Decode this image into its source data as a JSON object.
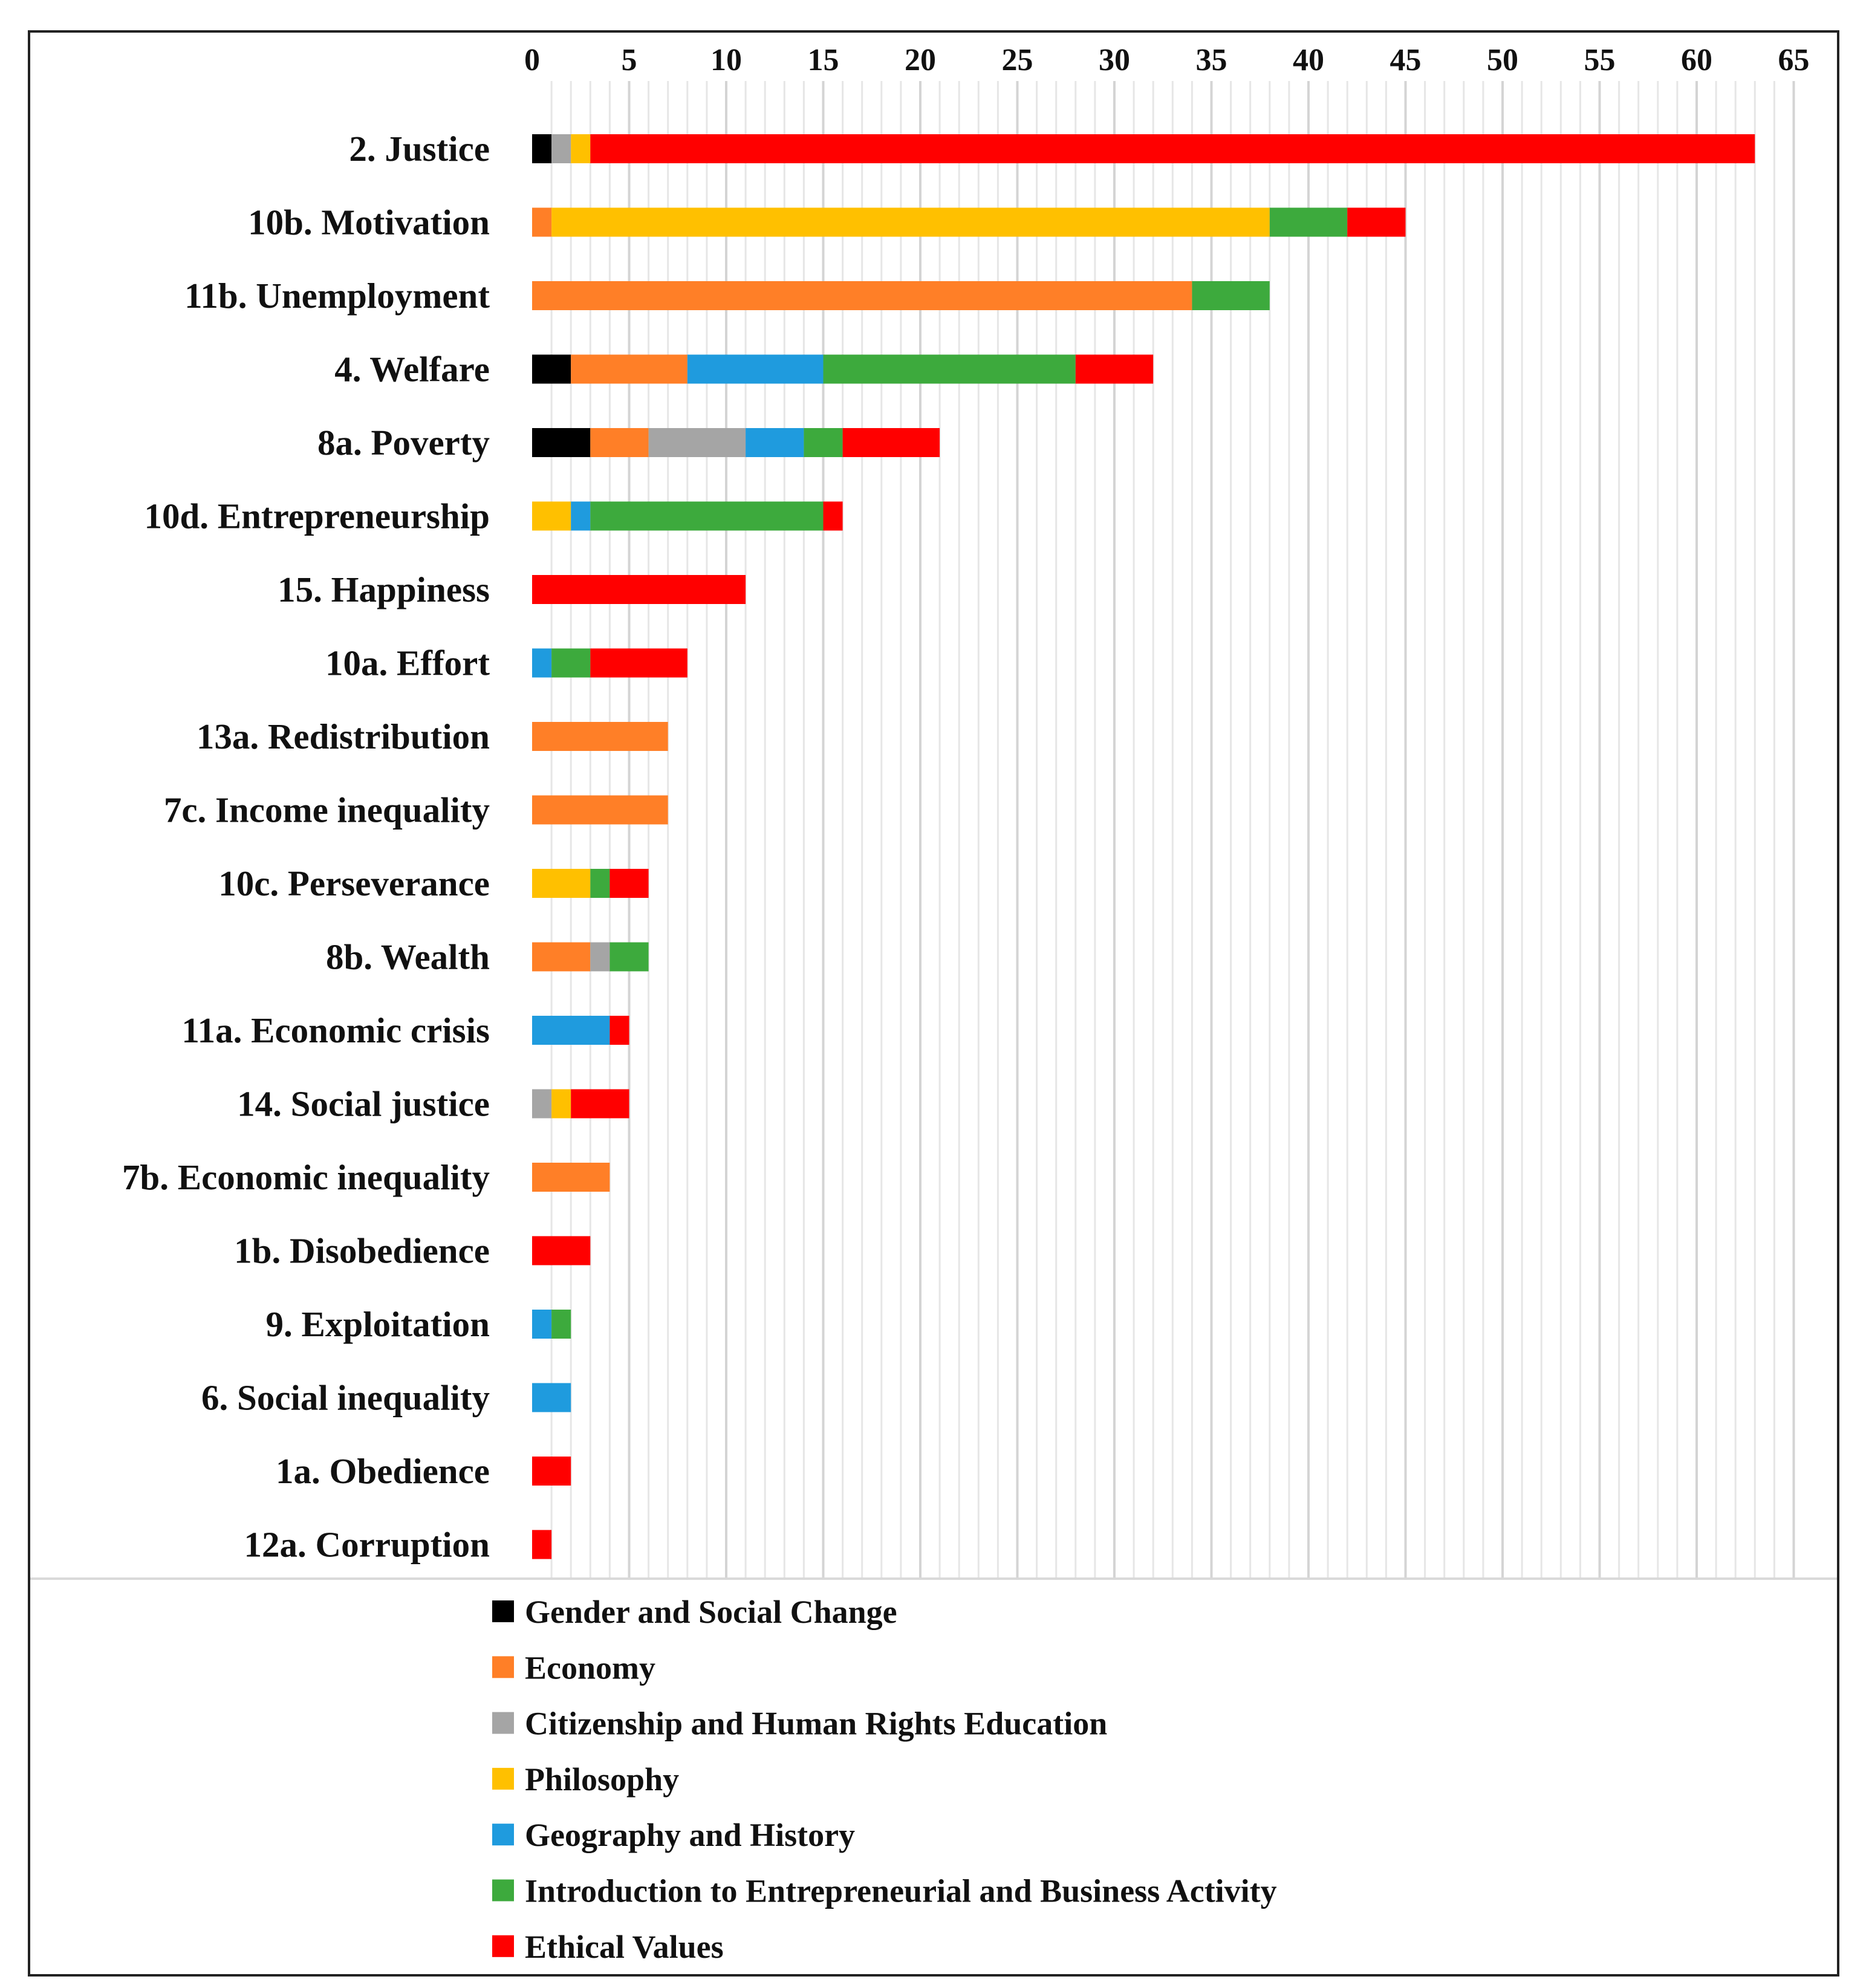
{
  "chart_data": {
    "type": "bar",
    "orientation": "horizontal",
    "stacked": true,
    "title": "",
    "xlabel": "",
    "ylabel": "",
    "xlim": [
      0,
      65
    ],
    "xticks": [
      "0",
      "5",
      "10",
      "15",
      "20",
      "25",
      "30",
      "35",
      "40",
      "45",
      "50",
      "55",
      "60",
      "65"
    ],
    "x_axis_position": "top",
    "grid": true,
    "legend_position": "bottom",
    "categories": [
      "2. Justice",
      "10b. Motivation",
      "11b. Unemployment",
      "4. Welfare",
      "8a. Poverty",
      "10d. Entrepreneurship",
      "15. Happiness",
      "10a. Effort",
      "13a. Redistribution",
      "7c. Income inequality",
      "10c. Perseverance",
      "8b. Wealth",
      "11a. Economic crisis",
      "14. Social justice",
      "7b. Economic inequality",
      "1b. Disobedience",
      "9. Exploitation",
      "6. Social inequality",
      "1a. Obedience",
      "12a. Corruption"
    ],
    "series": [
      {
        "name": "Gender and Social Change",
        "color": "#000000",
        "values": [
          1,
          0,
          0,
          2,
          3,
          0,
          0,
          0,
          0,
          0,
          0,
          0,
          0,
          0,
          0,
          0,
          0,
          0,
          0,
          0
        ]
      },
      {
        "name": "Economy",
        "color": "#FF7F27",
        "values": [
          0,
          1,
          34,
          6,
          3,
          0,
          0,
          0,
          7,
          7,
          0,
          3,
          0,
          0,
          4,
          0,
          0,
          0,
          0,
          0
        ]
      },
      {
        "name": "Citizenship and Human Rights Education",
        "color": "#A5A5A5",
        "values": [
          1,
          0,
          0,
          0,
          5,
          0,
          0,
          0,
          0,
          0,
          0,
          1,
          0,
          1,
          0,
          0,
          0,
          0,
          0,
          0
        ]
      },
      {
        "name": "Philosophy",
        "color": "#FFC000",
        "values": [
          1,
          37,
          0,
          0,
          0,
          2,
          0,
          0,
          0,
          0,
          3,
          0,
          0,
          1,
          0,
          0,
          0,
          0,
          0,
          0
        ]
      },
      {
        "name": "Geography and History",
        "color": "#1F9BDE",
        "values": [
          0,
          0,
          0,
          7,
          3,
          1,
          0,
          1,
          0,
          0,
          0,
          0,
          4,
          0,
          0,
          0,
          1,
          2,
          0,
          0
        ]
      },
      {
        "name": "Introduction to Entrepreneurial and Business Activity",
        "color": "#3DAA3D",
        "values": [
          0,
          4,
          4,
          13,
          2,
          12,
          0,
          2,
          0,
          0,
          1,
          2,
          0,
          0,
          0,
          0,
          1,
          0,
          0,
          0
        ]
      },
      {
        "name": "Ethical Values",
        "color": "#FF0000",
        "values": [
          60,
          3,
          0,
          4,
          5,
          1,
          11,
          5,
          0,
          0,
          2,
          0,
          1,
          3,
          0,
          3,
          0,
          0,
          2,
          1
        ]
      }
    ]
  }
}
